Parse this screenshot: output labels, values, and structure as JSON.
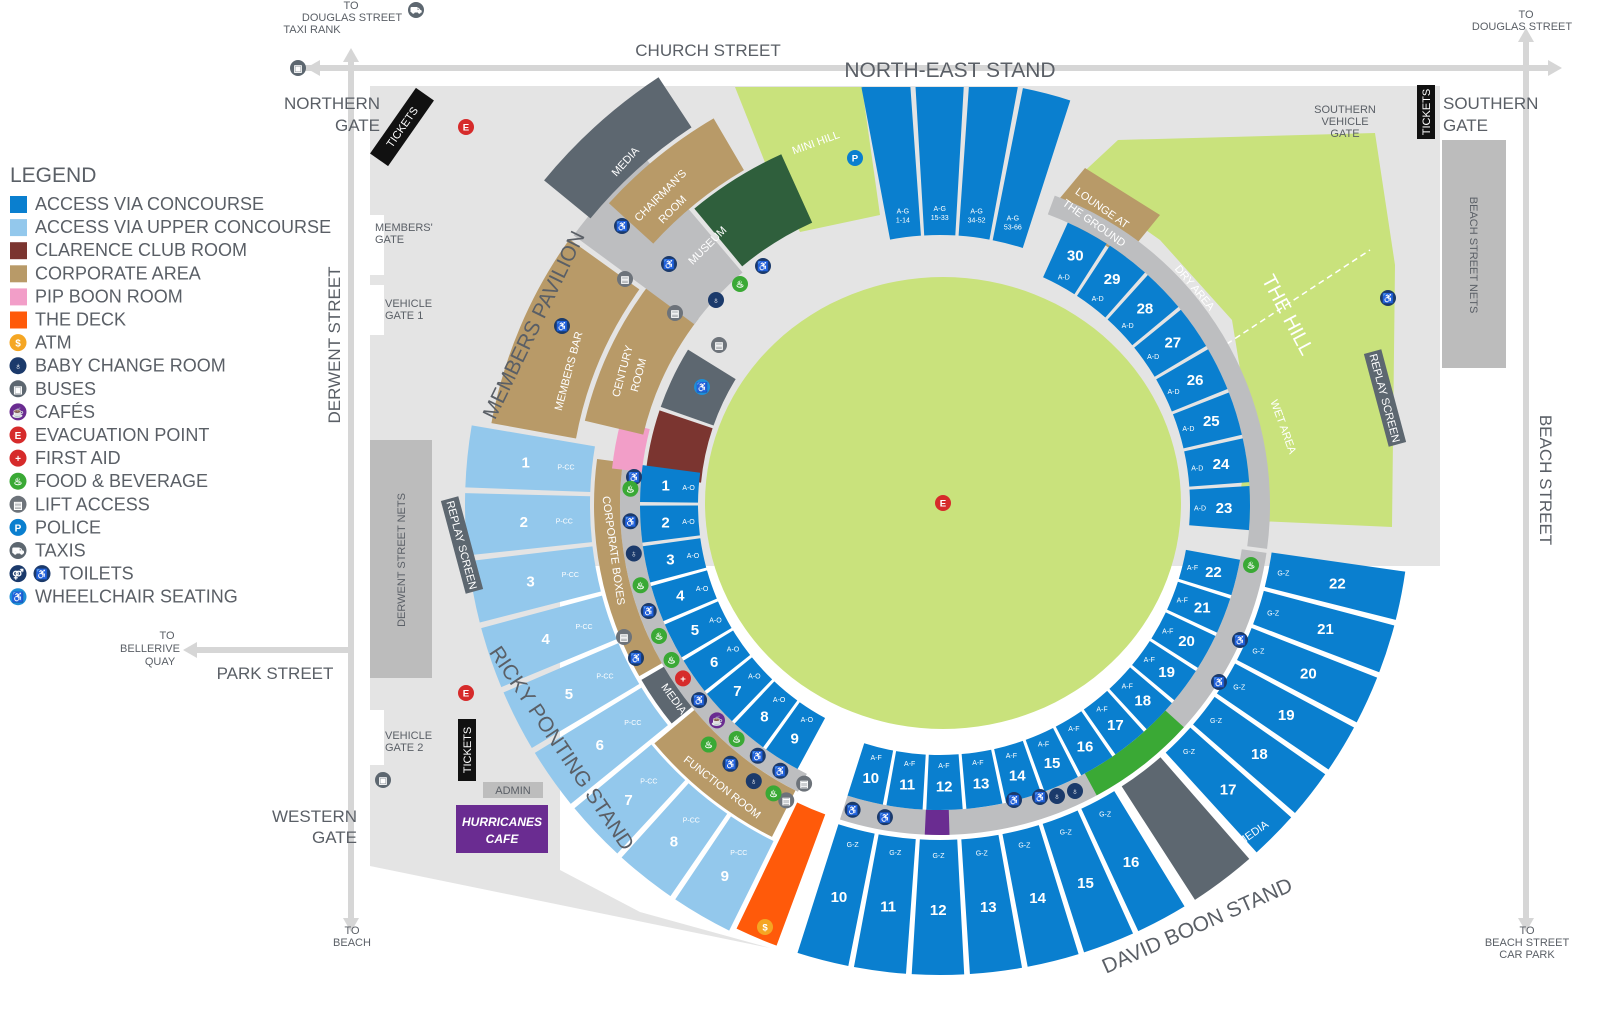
{
  "legend": {
    "title": "LEGEND",
    "items": [
      {
        "label": "ACCESS VIA CONCOURSE",
        "kind": "swatch",
        "color": "#0a7fcf"
      },
      {
        "label": "ACCESS VIA UPPER CONCOURSE",
        "kind": "swatch",
        "color": "#93c8ec"
      },
      {
        "label": "CLARENCE CLUB ROOM",
        "kind": "swatch",
        "color": "#7b3530"
      },
      {
        "label": "CORPORATE AREA",
        "kind": "swatch",
        "color": "#b89a68"
      },
      {
        "label": "PIP BOON ROOM",
        "kind": "swatch",
        "color": "#f29ec8"
      },
      {
        "label": "THE DECK",
        "kind": "swatch",
        "color": "#ff5a0a"
      },
      {
        "label": "ATM",
        "kind": "icon",
        "icon": "atm-icon",
        "color": "#f5a623",
        "glyph": "$"
      },
      {
        "label": "BABY CHANGE ROOM",
        "kind": "icon",
        "icon": "baby-change-icon",
        "color": "#1b3a6b",
        "glyph": "♁"
      },
      {
        "label": "BUSES",
        "kind": "icon",
        "icon": "bus-icon",
        "color": "#5d6770",
        "glyph": "▣"
      },
      {
        "label": "CAFÉS",
        "kind": "icon",
        "icon": "cafe-icon",
        "color": "#6a2c91",
        "glyph": "☕"
      },
      {
        "label": "EVACUATION POINT",
        "kind": "icon",
        "icon": "evacuation-icon",
        "color": "#d62b2b",
        "glyph": "E"
      },
      {
        "label": "FIRST AID",
        "kind": "icon",
        "icon": "first-aid-icon",
        "color": "#d62b2b",
        "glyph": "+"
      },
      {
        "label": "FOOD & BEVERAGE",
        "kind": "icon",
        "icon": "food-beverage-icon",
        "color": "#3aa935",
        "glyph": "♨"
      },
      {
        "label": "LIFT ACCESS",
        "kind": "icon",
        "icon": "lift-icon",
        "color": "#6d737a",
        "glyph": "▤"
      },
      {
        "label": "POLICE",
        "kind": "icon",
        "icon": "police-icon",
        "color": "#0a7fcf",
        "glyph": "P"
      },
      {
        "label": "TAXIS",
        "kind": "icon",
        "icon": "taxi-icon",
        "color": "#5d6770",
        "glyph": "⛟"
      },
      {
        "label": "TOILETS",
        "kind": "icon2",
        "icon": "toilets-icon",
        "color": "#1b3a6b",
        "glyph": "♿"
      },
      {
        "label": "WHEELCHAIR SEATING",
        "kind": "icon",
        "icon": "wheelchair-icon",
        "color": "#1e8ed8",
        "glyph": "♿"
      }
    ]
  },
  "colors": {
    "concourse": "#0a7fcf",
    "upper": "#93c8ec",
    "clarence": "#7b3530",
    "corporate": "#b89a68",
    "pip": "#f29ec8",
    "deck": "#ff5a0a",
    "field": "#c9e27c",
    "media": "#5d6770",
    "museum": "#2f5f3c",
    "ring": "#bdbec0",
    "ground": "#e4e4e4",
    "fnb": "#3aa935",
    "cafe": "#6a2c91"
  },
  "streets": {
    "church": "CHURCH STREET",
    "derwent": "DERWENT STREET",
    "park": "PARK STREET",
    "beach": "BEACH STREET"
  },
  "stands": {
    "north_east": "NORTH-EAST STAND",
    "members": "MEMBERS PAVILION",
    "ricky_ponting": "RICKY PONTING STAND",
    "david_boon": "DAVID BOON STAND"
  },
  "directions": {
    "top_left": [
      "TO",
      "DOUGLAS STREET",
      "TAXI RANK"
    ],
    "top_right": [
      "TO",
      "DOUGLAS STREET"
    ],
    "bellerive": [
      "TO",
      "BELLERIVE",
      "QUAY"
    ],
    "beach": [
      "TO",
      "BEACH"
    ],
    "car_park": [
      "TO",
      "BEACH STREET",
      "CAR PARK"
    ]
  },
  "gates": {
    "northern": [
      "NORTHERN",
      "GATE"
    ],
    "southern": [
      "SOUTHERN",
      "GATE"
    ],
    "western": [
      "WESTERN",
      "GATE"
    ],
    "southern_vehicle": [
      "SOUTHERN",
      "VEHICLE",
      "GATE"
    ],
    "members": [
      "MEMBERS'",
      "GATE"
    ],
    "vehicle1": [
      "VEHICLE",
      "GATE 1"
    ],
    "vehicle2": [
      "VEHICLE",
      "GATE 2"
    ]
  },
  "facilities": {
    "tickets": "TICKETS",
    "replay": "REPLAY SCREEN",
    "derwent_nets": "DERWENT STREET NETS",
    "beach_nets": "BEACH STREET NETS",
    "admin": "ADMIN",
    "cafe": [
      "HURRICANES",
      "CAFE"
    ],
    "mini_hill": "MINI HILL",
    "lounge": [
      "LOUNGE AT",
      "THE GROUND"
    ],
    "the_hill": "THE HILL",
    "dry": "DRY AREA",
    "wet": "WET AREA",
    "media": "MEDIA",
    "chairmans": [
      "CHAIRMAN'S",
      "ROOM"
    ],
    "museum": "MUSEUM",
    "century": [
      "CENTURY",
      "ROOM"
    ],
    "members_bar": "MEMBERS BAR",
    "corporate_boxes": "CORPORATE BOXES",
    "function_room": "FUNCTION ROOM"
  },
  "sections": {
    "ricky_upper": {
      "rows": "P-CC",
      "labels": [
        "1",
        "2",
        "3",
        "4",
        "5",
        "6",
        "7",
        "8",
        "9"
      ]
    },
    "ricky_lower": {
      "rows": "A-O",
      "labels": [
        "1",
        "2",
        "3",
        "4",
        "5",
        "6",
        "7",
        "8",
        "9"
      ]
    },
    "boon_lower": {
      "rows": "A-F",
      "labels": [
        "10",
        "11",
        "12",
        "13",
        "14",
        "15",
        "16",
        "17",
        "18",
        "19",
        "20",
        "21",
        "22"
      ]
    },
    "boon_upper": {
      "rows": "G-Z",
      "labels": [
        "10",
        "11",
        "12",
        "13",
        "14",
        "15",
        "16",
        "17",
        "18",
        "19",
        "20",
        "21",
        "22"
      ]
    },
    "hill_side": {
      "rows": "A-D",
      "labels": [
        "23",
        "24",
        "25",
        "26",
        "27",
        "28",
        "29",
        "30"
      ]
    },
    "north_east": [
      {
        "rows": "A-G",
        "seats": "1-14"
      },
      {
        "rows": "A-G",
        "seats": "15-33"
      },
      {
        "rows": "A-G",
        "seats": "34-52"
      },
      {
        "rows": "A-G",
        "seats": "53-66"
      }
    ]
  }
}
